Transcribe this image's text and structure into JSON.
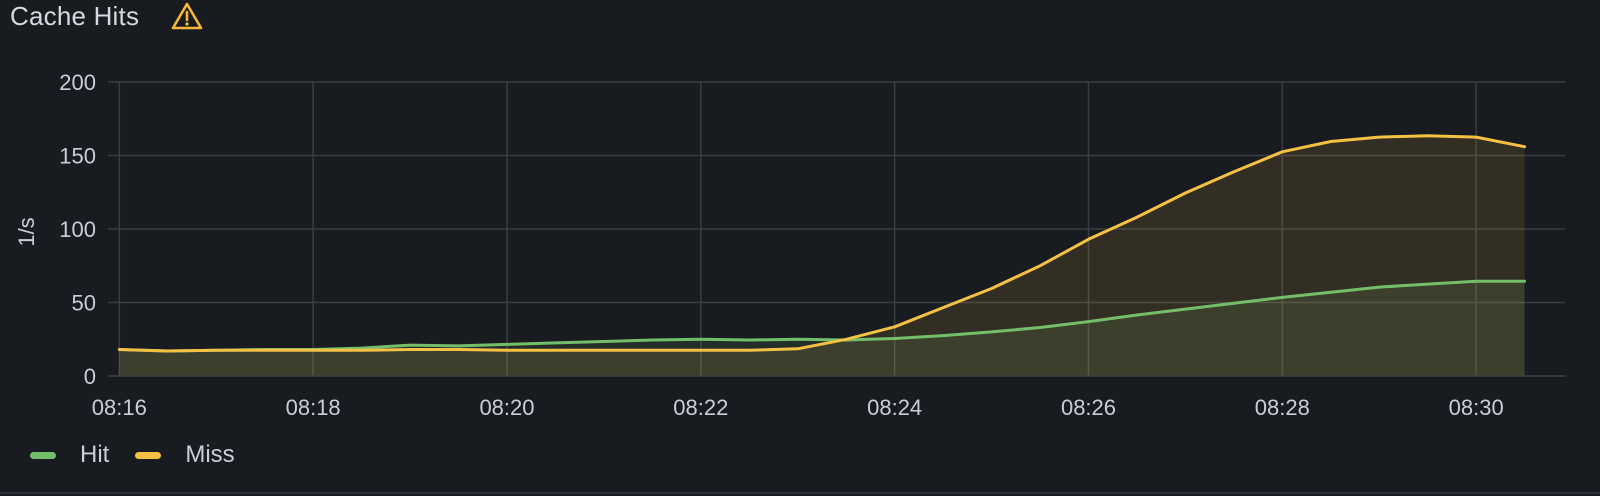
{
  "panel": {
    "title": "Cache Hits",
    "warning_icon": "warning-triangle-icon",
    "warning_color": "#f5b73b"
  },
  "colors": {
    "background": "#181b1f",
    "grid": "#3a3d42",
    "text": "#ccccdc"
  },
  "chart_data": {
    "type": "area",
    "title": "Cache Hits",
    "ylabel": "1/s",
    "xlabel": "",
    "x_ticks": [
      "08:16",
      "08:18",
      "08:20",
      "08:22",
      "08:24",
      "08:26",
      "08:28",
      "08:30"
    ],
    "y_ticks": [
      "0",
      "50",
      "100",
      "150",
      "200"
    ],
    "xlim": [
      "08:15:53",
      "08:30:55"
    ],
    "ylim": [
      0,
      200
    ],
    "grid": true,
    "legend_placement": "bottom-left",
    "x": [
      "08:16",
      "08:16:30",
      "08:17",
      "08:17:30",
      "08:18",
      "08:18:30",
      "08:19",
      "08:19:30",
      "08:20",
      "08:20:30",
      "08:21",
      "08:21:30",
      "08:22",
      "08:22:30",
      "08:23",
      "08:23:30",
      "08:24",
      "08:24:30",
      "08:25",
      "08:25:30",
      "08:26",
      "08:26:30",
      "08:27",
      "08:27:30",
      "08:28",
      "08:28:30",
      "08:29",
      "08:29:30",
      "08:30",
      "08:30:30"
    ],
    "series": [
      {
        "name": "Hit",
        "color": "#73bf69",
        "values": [
          18,
          17,
          17.5,
          18,
          18,
          19,
          21,
          20.5,
          21.5,
          22.5,
          23.5,
          24.5,
          25,
          24.5,
          25,
          24.5,
          25.5,
          27.5,
          30,
          33,
          37,
          41.5,
          45.5,
          49.5,
          53.5,
          57,
          60.5,
          62.5,
          64.5,
          64.5
        ]
      },
      {
        "name": "Miss",
        "color": "#f5c145",
        "values": [
          18,
          17,
          17.5,
          17.5,
          17.5,
          17.5,
          18,
          18,
          17.5,
          17.5,
          17.5,
          17.5,
          17.5,
          17.5,
          18.5,
          25,
          33.5,
          46.5,
          59.5,
          75,
          93,
          108,
          124.5,
          139,
          152.5,
          159.5,
          162.5,
          163.5,
          162.5,
          156
        ]
      }
    ]
  }
}
